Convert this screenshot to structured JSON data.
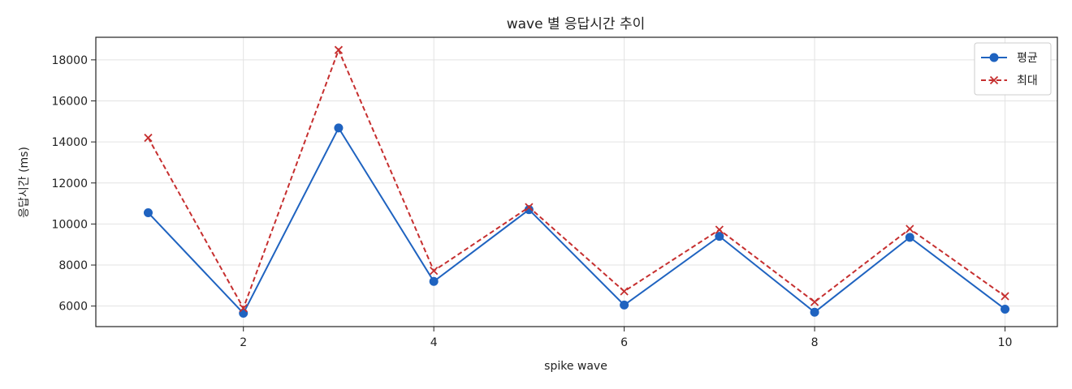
{
  "chart_data": {
    "type": "line",
    "title": "wave 별 응답시간 추이",
    "xlabel": "spike wave",
    "ylabel": "응답시간 (ms)",
    "x": [
      1,
      2,
      3,
      4,
      5,
      6,
      7,
      8,
      9,
      10
    ],
    "xlim": [
      0.45,
      10.55
    ],
    "ylim": [
      5000,
      19100
    ],
    "xticks": [
      2,
      4,
      6,
      8,
      10
    ],
    "yticks": [
      6000,
      8000,
      10000,
      12000,
      14000,
      16000,
      18000
    ],
    "grid": true,
    "legend_position": "top-right",
    "series": [
      {
        "name": "평균",
        "marker": "circle",
        "line_style": "solid",
        "color": "#1f63c0",
        "values": [
          10550,
          5650,
          14680,
          7200,
          10700,
          6050,
          9400,
          5700,
          9350,
          5850
        ]
      },
      {
        "name": "최대",
        "marker": "x",
        "line_style": "dashed",
        "color": "#c62f2f",
        "values": [
          14200,
          5900,
          18480,
          7720,
          10820,
          6720,
          9720,
          6200,
          9760,
          6480
        ]
      }
    ]
  }
}
